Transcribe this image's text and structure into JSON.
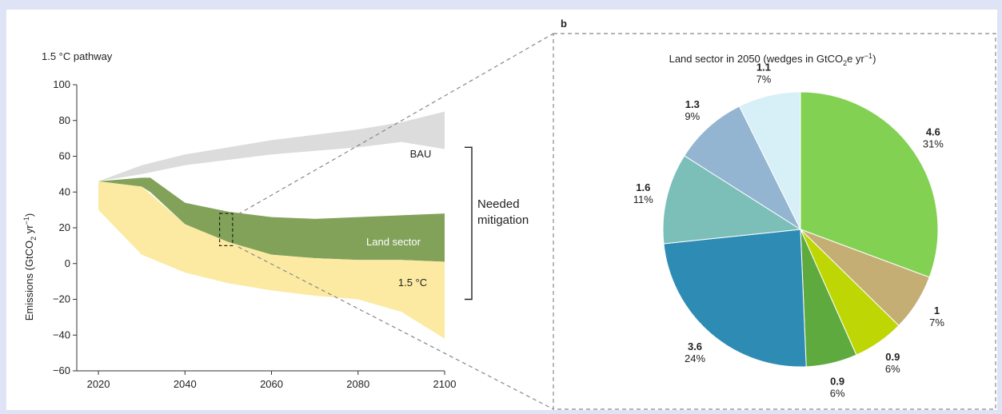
{
  "panel_b_label": "b",
  "chart_data": [
    {
      "type": "area",
      "title": "1.5 °C pathway",
      "ylabel_main": "Emissions  (GtCO",
      "ylabel_sub": "2",
      "ylabel_unit": " yr",
      "ylabel_sup": "−1",
      "ylabel_close": ")",
      "xlim": [
        2015,
        2100
      ],
      "ylim": [
        -60,
        100
      ],
      "xticks": [
        2020,
        2040,
        2060,
        2080,
        2100
      ],
      "yticks": [
        100,
        80,
        60,
        40,
        20,
        0,
        -20,
        -40,
        -60
      ],
      "ytick_labels": [
        "100",
        "80",
        "60",
        "40",
        "20",
        "0",
        "−20",
        "−40",
        "−60"
      ],
      "series": [
        {
          "name": "BAU",
          "color": "#dcdcdc",
          "x": [
            2020,
            2030,
            2040,
            2050,
            2060,
            2070,
            2080,
            2090,
            2100
          ],
          "upper": [
            46,
            55,
            61,
            65,
            69,
            72,
            75,
            79,
            85
          ],
          "lower": [
            46,
            50,
            55,
            58,
            61,
            63,
            65,
            68,
            64
          ]
        },
        {
          "name": "Land sector",
          "color": "#82a25a",
          "x": [
            2020,
            2030,
            2032,
            2040,
            2050,
            2060,
            2070,
            2080,
            2090,
            2100
          ],
          "upper": [
            46,
            48,
            48,
            34,
            29,
            26,
            25,
            26,
            27,
            28
          ],
          "lower": [
            46,
            43,
            40,
            22,
            12,
            5,
            3,
            2,
            2,
            1
          ]
        },
        {
          "name": "1.5 °C",
          "color": "#fceaa2",
          "x": [
            2020,
            2030,
            2040,
            2050,
            2060,
            2070,
            2080,
            2090,
            2100
          ],
          "upper": [
            46,
            43,
            22,
            12,
            5,
            3,
            2,
            2,
            1
          ],
          "lower": [
            30,
            5,
            -5,
            -11,
            -15,
            -18,
            -20,
            -27,
            -42
          ]
        }
      ],
      "bracket_label_line1": "Needed",
      "bracket_label_line2": "mitigation",
      "bracket_range": [
        65,
        -20
      ],
      "zoom_box": {
        "x": [
          2048,
          2051
        ],
        "y": [
          10,
          28
        ]
      }
    },
    {
      "type": "pie",
      "title_main": "Land sector in 2050 (wedges in GtCO",
      "title_sub": "2",
      "title_unit": "e yr",
      "title_sup": "−1",
      "title_close": ")",
      "slices": [
        {
          "value": 4.6,
          "value_label": "4.6",
          "percent": "31%",
          "color": "#82d152"
        },
        {
          "value": 1.0,
          "value_label": "1",
          "percent": "7%",
          "color": "#c4ae74"
        },
        {
          "value": 0.9,
          "value_label": "0.9",
          "percent": "6%",
          "color": "#bdd604"
        },
        {
          "value": 0.9,
          "value_label": "0.9",
          "percent": "6%",
          "color": "#5eaa3e"
        },
        {
          "value": 3.6,
          "value_label": "3.6",
          "percent": "24%",
          "color": "#2e8cb4"
        },
        {
          "value": 1.6,
          "value_label": "1.6",
          "percent": "11%",
          "color": "#7cbfb9"
        },
        {
          "value": 1.3,
          "value_label": "1.3",
          "percent": "9%",
          "color": "#93b5d1"
        },
        {
          "value": 1.1,
          "value_label": "1.1",
          "percent": "7%",
          "color": "#d7eff6"
        }
      ]
    }
  ]
}
